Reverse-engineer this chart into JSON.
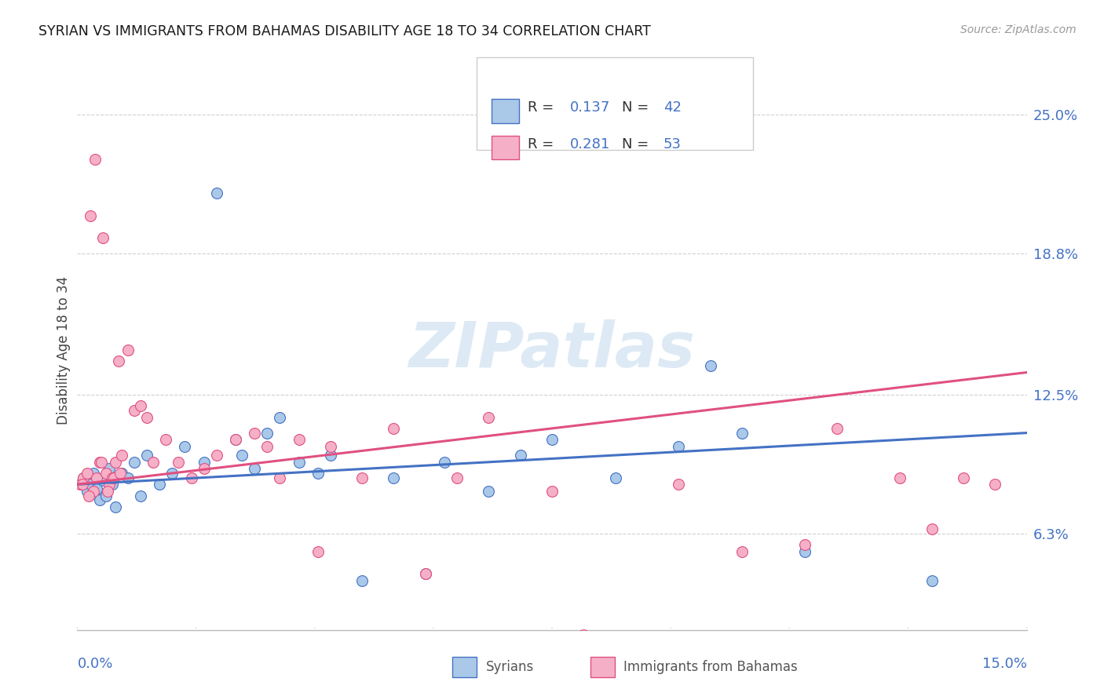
{
  "title": "SYRIAN VS IMMIGRANTS FROM BAHAMAS DISABILITY AGE 18 TO 34 CORRELATION CHART",
  "source": "Source: ZipAtlas.com",
  "ylabel": "Disability Age 18 to 34",
  "ytick_labels": [
    "6.3%",
    "12.5%",
    "18.8%",
    "25.0%"
  ],
  "ytick_values": [
    6.3,
    12.5,
    18.8,
    25.0
  ],
  "xmin": 0.0,
  "xmax": 15.0,
  "ymin": 2.0,
  "ymax": 27.0,
  "syrians_color": "#aac8e8",
  "bahamas_color": "#f5b0c8",
  "line_syrians_color": "#4472c4",
  "line_bahamas_color": "#e05080",
  "legend_r1_val": "0.137",
  "legend_n1_val": "42",
  "legend_r2_val": "0.281",
  "legend_n2_val": "53",
  "syrians_x": [
    0.1,
    0.15,
    0.2,
    0.25,
    0.3,
    0.35,
    0.4,
    0.45,
    0.5,
    0.55,
    0.6,
    0.7,
    0.8,
    0.9,
    1.0,
    1.1,
    1.3,
    1.5,
    1.7,
    2.0,
    2.2,
    2.5,
    2.6,
    2.8,
    3.0,
    3.2,
    3.5,
    3.8,
    4.0,
    4.5,
    5.0,
    5.5,
    5.8,
    6.5,
    7.0,
    7.5,
    8.5,
    9.5,
    10.0,
    10.5,
    11.5,
    13.5
  ],
  "syrians_y": [
    8.8,
    8.2,
    8.5,
    9.0,
    8.3,
    7.8,
    8.7,
    8.0,
    9.2,
    8.5,
    7.5,
    9.0,
    8.8,
    9.5,
    8.0,
    9.8,
    8.5,
    9.0,
    10.2,
    9.5,
    21.5,
    10.5,
    9.8,
    9.2,
    10.8,
    11.5,
    9.5,
    9.0,
    9.8,
    4.2,
    8.8,
    4.5,
    9.5,
    8.2,
    9.8,
    10.5,
    8.8,
    10.2,
    13.8,
    10.8,
    5.5,
    4.2
  ],
  "bahamas_x": [
    0.05,
    0.1,
    0.15,
    0.2,
    0.25,
    0.3,
    0.35,
    0.4,
    0.45,
    0.5,
    0.55,
    0.6,
    0.65,
    0.7,
    0.8,
    0.9,
    1.0,
    1.1,
    1.2,
    1.4,
    1.6,
    1.8,
    2.0,
    2.2,
    2.5,
    2.8,
    3.0,
    3.2,
    3.5,
    3.8,
    4.0,
    4.5,
    5.0,
    5.5,
    6.0,
    6.5,
    7.5,
    8.0,
    9.5,
    10.5,
    11.5,
    12.0,
    13.0,
    13.5,
    14.0,
    14.5,
    0.08,
    0.18,
    0.28,
    0.38,
    0.48,
    0.58,
    0.68
  ],
  "bahamas_y": [
    8.5,
    8.8,
    9.0,
    20.5,
    8.2,
    8.8,
    9.5,
    19.5,
    9.0,
    8.5,
    8.8,
    9.5,
    14.0,
    9.8,
    14.5,
    11.8,
    12.0,
    11.5,
    9.5,
    10.5,
    9.5,
    8.8,
    9.2,
    9.8,
    10.5,
    10.8,
    10.2,
    8.8,
    10.5,
    5.5,
    10.2,
    8.8,
    11.0,
    4.5,
    8.8,
    11.5,
    8.2,
    1.8,
    8.5,
    5.5,
    5.8,
    11.0,
    8.8,
    6.5,
    8.8,
    8.5,
    8.5,
    8.0,
    23.0,
    9.5,
    8.2,
    8.8,
    9.0
  ]
}
